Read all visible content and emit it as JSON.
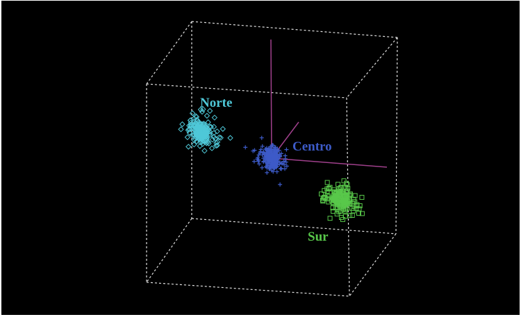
{
  "chart_data": {
    "type": "scatter",
    "dimensions": 3,
    "background": "#000000",
    "box": "dashed-wireframe",
    "axes_color": "#a0408c",
    "grid": false,
    "legend": "none",
    "series": [
      {
        "name": "Norte",
        "color": "#4fc8d8",
        "marker": "diamond",
        "center": [
          -1.6,
          0.4,
          0.3
        ],
        "spread": 0.35,
        "count": 160
      },
      {
        "name": "Centro",
        "color": "#3d5bc8",
        "marker": "plus",
        "center": [
          0.0,
          0.0,
          0.0
        ],
        "spread": 0.3,
        "count": 180
      },
      {
        "name": "Sur",
        "color": "#58c84a",
        "marker": "square",
        "center": [
          1.2,
          -1.4,
          -0.2
        ],
        "spread": 0.35,
        "count": 150
      }
    ]
  }
}
